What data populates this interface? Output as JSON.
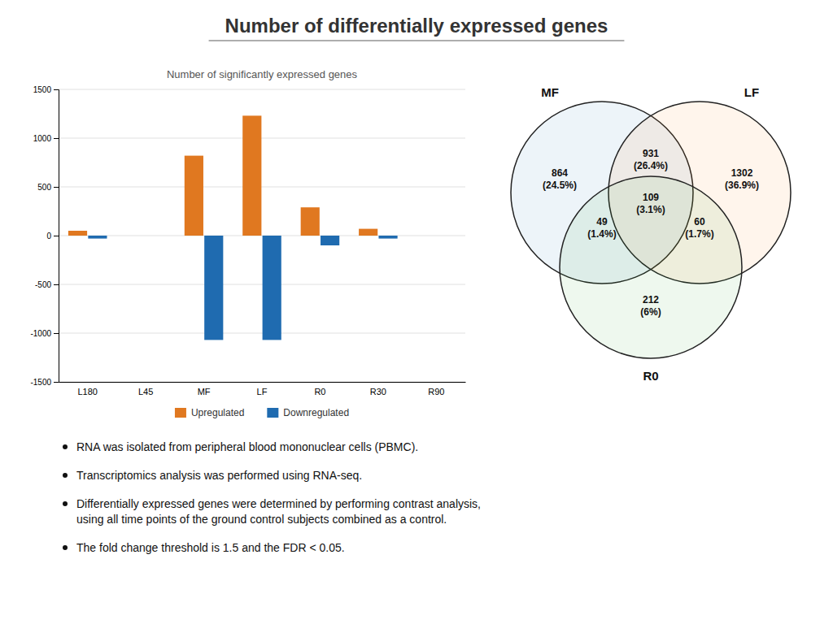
{
  "title": "Number of differentially expressed genes",
  "annotations": [
    "RNA was isolated from peripheral blood mononuclear cells (PBMC).",
    "Transcriptomics analysis was performed using RNA-seq.",
    "Differentially expressed genes were determined by performing contrast analysis,\nusing all time points of the ground control subjects combined as a control.",
    "The fold change threshold is 1.5 and the FDR < 0.05."
  ],
  "chart_data": [
    {
      "type": "bar",
      "title": "Number of significantly expressed genes",
      "categories": [
        "L180",
        "L45",
        "MF",
        "LF",
        "R0",
        "R30",
        "R90"
      ],
      "series": [
        {
          "name": "Upregulated",
          "color": "#E07820",
          "values": [
            50,
            0,
            820,
            1230,
            290,
            70,
            0
          ]
        },
        {
          "name": "Downregulated",
          "color": "#1F6BB0",
          "values": [
            -30,
            0,
            -1070,
            -1070,
            -100,
            -30,
            0
          ]
        }
      ],
      "ylim": [
        -1500,
        1500
      ],
      "yticks": [
        -1500,
        -1000,
        -500,
        0,
        500,
        1000,
        1500
      ],
      "grid": true,
      "legend": "bottom"
    },
    {
      "type": "venn",
      "sets": [
        "MF",
        "LF",
        "R0"
      ],
      "regions": [
        [
          "MF"
        ],
        [
          "LF"
        ],
        [
          "MF",
          "LF"
        ],
        [
          "MF",
          "R0"
        ],
        [
          "LF",
          "R0"
        ],
        [
          "MF",
          "LF",
          "R0"
        ],
        [
          "R0"
        ]
      ],
      "values": [
        864,
        1302,
        931,
        49,
        60,
        109,
        212
      ],
      "percentages": [
        24.5,
        36.9,
        26.4,
        1.4,
        1.7,
        3.1,
        6
      ],
      "percentage_labels": [
        "(24.5%)",
        "(36.9%)",
        "(26.4%)",
        "(1.4%)",
        "(1.7%)",
        "(3.1%)",
        "(6%)"
      ]
    }
  ]
}
